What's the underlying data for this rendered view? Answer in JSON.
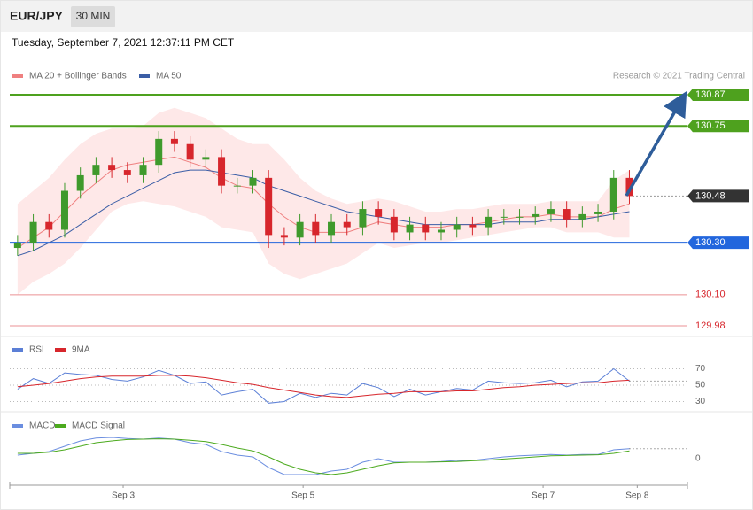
{
  "header": {
    "symbol": "EUR/JPY",
    "interval": "30 MIN",
    "timestamp": "Tuesday, September 7, 2021 12:37:11 PM CET"
  },
  "chart_data": [
    {
      "type": "candlestick",
      "credit": "Research © 2021 Trading Central",
      "xlim": [
        -0.5,
        42.7
      ],
      "ylim": [
        129.946,
        130.928
      ],
      "open": [
        130.28,
        130.3,
        130.38,
        130.35,
        130.5,
        130.56,
        130.6,
        130.58,
        130.56,
        130.6,
        130.7,
        130.68,
        130.62,
        130.63,
        130.52,
        130.52,
        130.55,
        130.33,
        130.32,
        130.38,
        130.33,
        130.38,
        130.36,
        130.43,
        130.4,
        130.34,
        130.37,
        130.34,
        130.35,
        130.37,
        130.36,
        130.4,
        130.4,
        130.4,
        130.41,
        130.43,
        130.39,
        130.41,
        130.42,
        130.55
      ],
      "high": [
        130.33,
        130.41,
        130.41,
        130.53,
        130.59,
        130.63,
        130.63,
        130.61,
        130.63,
        130.73,
        130.73,
        130.71,
        130.66,
        130.66,
        130.55,
        130.58,
        130.58,
        130.36,
        130.41,
        130.41,
        130.41,
        130.41,
        130.46,
        130.46,
        130.43,
        130.4,
        130.4,
        130.38,
        130.4,
        130.4,
        130.43,
        130.43,
        130.43,
        130.44,
        130.46,
        130.46,
        130.44,
        130.45,
        130.58,
        130.58
      ],
      "low": [
        130.25,
        130.27,
        130.32,
        130.32,
        130.47,
        130.53,
        130.55,
        130.53,
        130.53,
        130.57,
        130.65,
        130.59,
        130.59,
        130.49,
        130.49,
        130.49,
        130.28,
        130.29,
        130.29,
        130.3,
        130.3,
        130.33,
        130.33,
        130.37,
        130.31,
        130.31,
        130.31,
        130.31,
        130.32,
        130.33,
        130.33,
        130.37,
        130.37,
        130.37,
        130.38,
        130.36,
        130.36,
        130.38,
        130.39,
        130.45
      ],
      "close": [
        130.3,
        130.38,
        130.35,
        130.5,
        130.56,
        130.6,
        130.58,
        130.56,
        130.6,
        130.7,
        130.68,
        130.62,
        130.63,
        130.52,
        130.52,
        130.55,
        130.33,
        130.32,
        130.38,
        130.33,
        130.38,
        130.36,
        130.43,
        130.4,
        130.34,
        130.37,
        130.34,
        130.35,
        130.37,
        130.36,
        130.4,
        130.4,
        130.4,
        130.41,
        130.43,
        130.39,
        130.41,
        130.42,
        130.55,
        130.48
      ],
      "up_color": "#3f9a2c",
      "down_color": "#d7262c",
      "bands": {
        "color": "#fde0e0",
        "upper": [
          130.45,
          130.5,
          130.55,
          130.62,
          130.68,
          130.72,
          130.74,
          130.74,
          130.75,
          130.8,
          130.82,
          130.8,
          130.78,
          130.74,
          130.7,
          130.68,
          130.68,
          130.62,
          130.55,
          130.5,
          130.47,
          130.45,
          130.46,
          130.47,
          130.46,
          130.44,
          130.42,
          130.42,
          130.43,
          130.43,
          130.44,
          130.45,
          130.45,
          130.45,
          130.46,
          130.46,
          130.46,
          130.46,
          130.54,
          130.58
        ],
        "lower": [
          130.1,
          130.15,
          130.18,
          130.22,
          130.28,
          130.35,
          130.42,
          130.45,
          130.46,
          130.45,
          130.44,
          130.42,
          130.4,
          130.36,
          130.35,
          130.34,
          130.22,
          130.18,
          130.16,
          130.18,
          130.2,
          130.22,
          130.26,
          130.3,
          130.28,
          130.29,
          130.3,
          130.3,
          130.31,
          130.32,
          130.33,
          130.34,
          130.35,
          130.36,
          130.36,
          130.34,
          130.34,
          130.34,
          130.32,
          130.32
        ]
      },
      "series": [
        {
          "name": "MA 20 + Bollinger Bands",
          "color": "#ef8080",
          "values": [
            130.28,
            130.32,
            130.36,
            130.42,
            130.48,
            130.53,
            130.58,
            130.6,
            130.61,
            130.62,
            130.63,
            130.61,
            130.59,
            130.55,
            130.52,
            130.51,
            130.45,
            130.4,
            130.36,
            130.34,
            130.34,
            130.34,
            130.36,
            130.38,
            130.37,
            130.36,
            130.36,
            130.36,
            130.37,
            130.37,
            130.38,
            130.39,
            130.4,
            130.4,
            130.41,
            130.4,
            130.4,
            130.4,
            130.43,
            130.45
          ]
        },
        {
          "name": "MA 50",
          "color": "#3b5ea6",
          "values": [
            130.25,
            130.27,
            130.3,
            130.33,
            130.37,
            130.41,
            130.45,
            130.48,
            130.51,
            130.54,
            130.57,
            130.58,
            130.58,
            130.57,
            130.56,
            130.55,
            130.52,
            130.5,
            130.48,
            130.46,
            130.44,
            130.42,
            130.41,
            130.4,
            130.39,
            130.38,
            130.37,
            130.37,
            130.37,
            130.37,
            130.37,
            130.38,
            130.38,
            130.38,
            130.39,
            130.39,
            130.39,
            130.4,
            130.41,
            130.42
          ]
        }
      ],
      "levels": [
        {
          "value": 130.87,
          "label": "130.87",
          "color": "#4ea11e",
          "style": "box"
        },
        {
          "value": 130.75,
          "label": "130.75",
          "color": "#4ea11e",
          "style": "box"
        },
        {
          "value": 130.48,
          "label": "130.48",
          "color": "#333333",
          "style": "current"
        },
        {
          "value": 130.3,
          "label": "130.30",
          "color": "#2266dd",
          "style": "box"
        },
        {
          "value": 130.1,
          "label": "130.10",
          "color": "#d7262c",
          "style": "text"
        },
        {
          "value": 129.98,
          "label": "129.98",
          "color": "#d7262c",
          "style": "text"
        }
      ]
    },
    {
      "type": "line",
      "xlim": [
        -0.5,
        42.7
      ],
      "ylim": [
        20.8,
        93.2
      ],
      "yticks": [
        30,
        50,
        70
      ],
      "series": [
        {
          "name": "RSI",
          "color": "#5b7fd6",
          "values": [
            45,
            58,
            52,
            65,
            63,
            62,
            57,
            55,
            60,
            68,
            62,
            52,
            54,
            38,
            42,
            45,
            28,
            30,
            40,
            35,
            40,
            38,
            52,
            47,
            36,
            45,
            38,
            42,
            46,
            44,
            55,
            53,
            52,
            53,
            56,
            48,
            54,
            55,
            70,
            55
          ]
        },
        {
          "name": "9MA",
          "color": "#d7262c",
          "values": [
            48,
            50,
            52,
            55,
            58,
            60,
            61,
            61,
            61,
            62,
            62,
            61,
            59,
            56,
            53,
            51,
            47,
            44,
            41,
            38,
            36,
            35,
            37,
            39,
            40,
            42,
            42,
            42,
            43,
            43,
            45,
            47,
            48,
            50,
            51,
            52,
            53,
            53,
            55,
            56
          ]
        }
      ]
    },
    {
      "type": "line",
      "xlim": [
        -0.5,
        42.7
      ],
      "ylim": [
        -0.075,
        0.095
      ],
      "yticks": [
        0
      ],
      "xticks": [
        {
          "value": 6.73,
          "label": "Sep 3"
        },
        {
          "value": 18.2,
          "label": "Sep 5"
        },
        {
          "value": 33.5,
          "label": "Sep 7"
        },
        {
          "value": 39.5,
          "label": "Sep 8"
        }
      ],
      "series": [
        {
          "name": "MACD",
          "color": "#6b8ee0",
          "values": [
            0.01,
            0.015,
            0.02,
            0.035,
            0.05,
            0.058,
            0.06,
            0.057,
            0.055,
            0.058,
            0.055,
            0.045,
            0.04,
            0.02,
            0.01,
            0.005,
            -0.025,
            -0.045,
            -0.045,
            -0.045,
            -0.035,
            -0.03,
            -0.01,
            0,
            -0.01,
            -0.01,
            -0.01,
            -0.008,
            -0.005,
            -0.005,
            0,
            0.005,
            0.008,
            0.01,
            0.012,
            0.01,
            0.012,
            0.012,
            0.025,
            0.028
          ]
        },
        {
          "name": "MACD Signal",
          "color": "#4caa1e",
          "values": [
            0.015,
            0.015,
            0.018,
            0.025,
            0.035,
            0.045,
            0.05,
            0.054,
            0.055,
            0.056,
            0.055,
            0.052,
            0.048,
            0.04,
            0.03,
            0.022,
            0.005,
            -0.015,
            -0.03,
            -0.04,
            -0.045,
            -0.04,
            -0.03,
            -0.02,
            -0.012,
            -0.01,
            -0.01,
            -0.009,
            -0.008,
            -0.006,
            -0.004,
            -0.001,
            0.002,
            0.005,
            0.008,
            0.009,
            0.01,
            0.011,
            0.015,
            0.022
          ]
        }
      ]
    }
  ]
}
